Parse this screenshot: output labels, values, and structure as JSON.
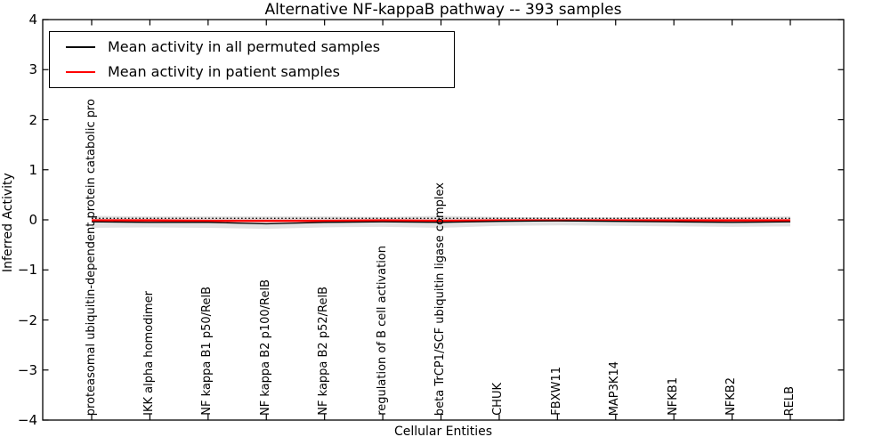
{
  "figure": {
    "title": "Alternative NF-kappaB pathway -- 393 samples",
    "xlabel": "Cellular Entities",
    "ylabel": "Inferred Activity"
  },
  "axes": {
    "yticks": [
      -4,
      -3,
      -2,
      -1,
      0,
      1,
      2,
      3,
      4
    ],
    "ytick_labels": [
      "−4",
      "−3",
      "−2",
      "−1",
      "0",
      "1",
      "2",
      "3",
      "4"
    ]
  },
  "legend": {
    "entries": [
      {
        "label": "Mean activity in all permuted samples",
        "color": "#000000"
      },
      {
        "label": "Mean activity in patient samples",
        "color": "#ff0000"
      }
    ]
  },
  "chart_data": {
    "type": "line",
    "title": "Alternative NF-kappaB pathway -- 393 samples",
    "xlabel": "Cellular Entities",
    "ylabel": "Inferred Activity",
    "ylim": [
      -4,
      4
    ],
    "yticks": [
      -4,
      -3,
      -2,
      -1,
      0,
      1,
      2,
      3,
      4
    ],
    "grid": false,
    "legend_position": "upper left",
    "xtick_rotation": 90,
    "categories": [
      "proteasomal ubiquitin-dependent protein catabolic pro",
      "IKK alpha homodimer",
      "NF kappa B1 p50/RelB",
      "NF kappa B2 p100/RelB",
      "NF kappa B2 p52/RelB",
      "regulation of B cell activation",
      "beta TrCP1/SCF ubiquitin ligase complex",
      "CHUK",
      "FBXW11",
      "MAP3K14",
      "NFKB1",
      "NFKB2",
      "RELB"
    ],
    "series": [
      {
        "name": "Mean activity in all permuted samples",
        "color": "#000000",
        "style": "solid",
        "width": 1.3,
        "values": [
          -0.04,
          -0.05,
          -0.05,
          -0.08,
          -0.05,
          -0.04,
          -0.05,
          -0.03,
          -0.02,
          -0.03,
          -0.04,
          -0.05,
          -0.04
        ]
      },
      {
        "name": "Mean activity in patient samples",
        "color": "#ff0000",
        "style": "solid",
        "width": 2.5,
        "values": [
          -0.01,
          -0.01,
          -0.02,
          -0.02,
          -0.02,
          -0.01,
          -0.02,
          -0.01,
          -0.01,
          -0.01,
          -0.01,
          -0.01,
          -0.01
        ]
      },
      {
        "name": "permuted mean upper std boundary (dotted)",
        "color": "#000000",
        "style": "dotted",
        "width": 1.3,
        "values": [
          0.03,
          0.03,
          0.03,
          0.03,
          0.03,
          0.03,
          0.03,
          0.03,
          0.03,
          0.03,
          0.03,
          0.03,
          0.03
        ]
      }
    ],
    "band": {
      "name": "permuted std range band",
      "color": "#e1e1e1",
      "upper": [
        0.08,
        0.07,
        0.07,
        0.07,
        0.07,
        0.06,
        0.08,
        0.06,
        0.05,
        0.05,
        0.06,
        0.06,
        0.07
      ],
      "lower": [
        -0.16,
        -0.15,
        -0.16,
        -0.18,
        -0.15,
        -0.14,
        -0.16,
        -0.12,
        -0.11,
        -0.12,
        -0.13,
        -0.14,
        -0.13
      ]
    }
  }
}
